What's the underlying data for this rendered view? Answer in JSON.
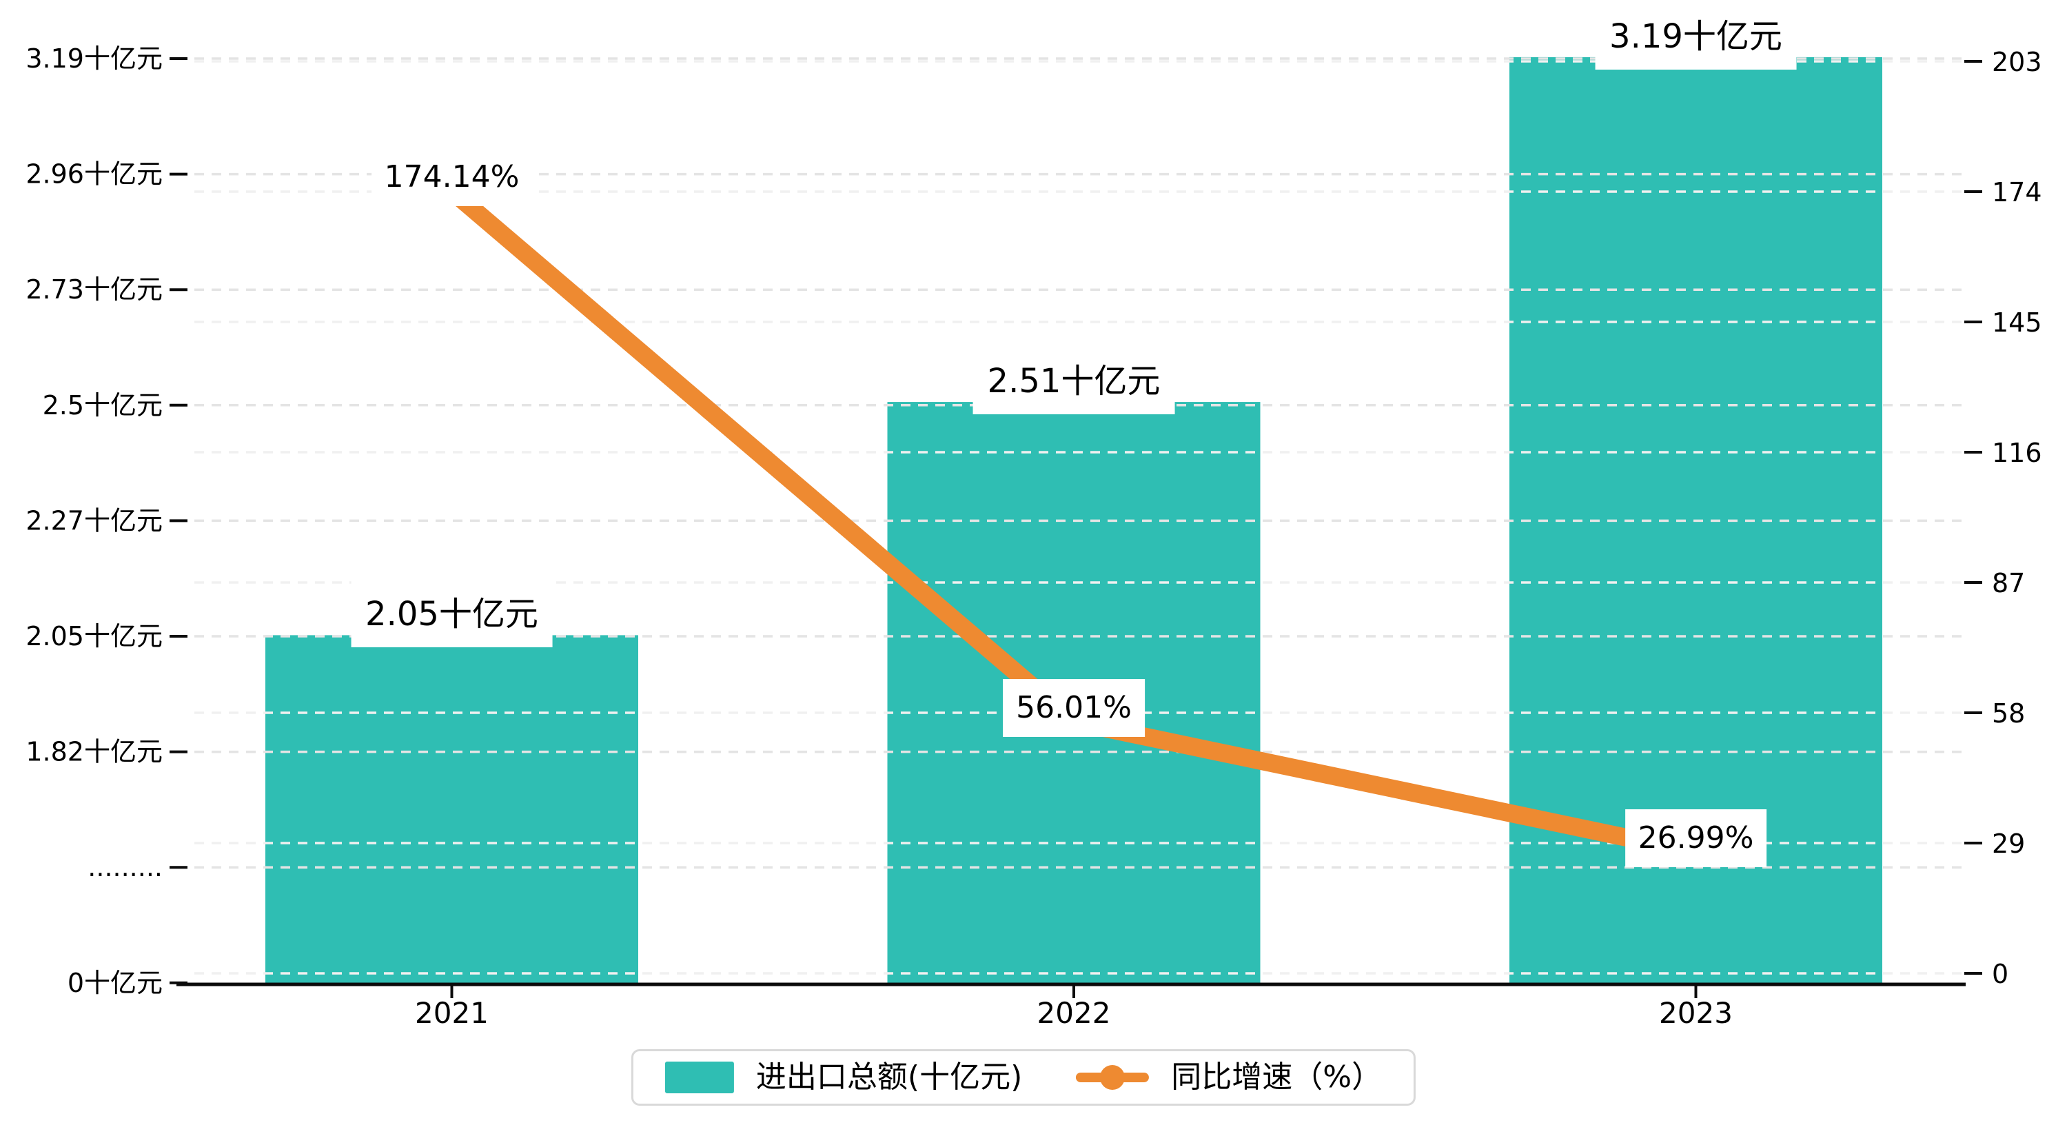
{
  "chart_data": {
    "type": "bar",
    "title": "",
    "categories": [
      "2021",
      "2022",
      "2023"
    ],
    "series": [
      {
        "name": "进出口总额(十亿元)",
        "type": "bar",
        "axis": "left",
        "values": [
          2.05,
          2.51,
          3.19
        ],
        "data_labels": [
          "2.05十亿元",
          "2.51十亿元",
          "3.19十亿元"
        ],
        "color": "#2FBEB3"
      },
      {
        "name": "同比增速（%）",
        "type": "line",
        "axis": "right",
        "values": [
          174.14,
          56.01,
          26.99
        ],
        "data_labels": [
          "174.14%",
          "56.01%",
          "26.99%"
        ],
        "color": "#EE8A31"
      }
    ],
    "left_axis": {
      "unit": "十亿元",
      "max": 3.19,
      "has_break": true,
      "tick_labels": [
        "3.19十亿元",
        "2.96十亿元",
        "2.73十亿元",
        "2.5十亿元",
        "2.27十亿元",
        "2.05十亿元",
        "1.82十亿元",
        ".........",
        "0十亿元"
      ]
    },
    "right_axis": {
      "min": 0,
      "max": 203,
      "tick_values": [
        203,
        174,
        145,
        116,
        87,
        58,
        29,
        0
      ],
      "tick_labels": [
        "203",
        "174",
        "145",
        "116",
        "87",
        "58",
        "29",
        "0"
      ]
    },
    "legend": {
      "position": "bottom",
      "items": [
        {
          "label": "进出口总额(十亿元)",
          "marker": "bar-swatch",
          "color": "#2FBEB3"
        },
        {
          "label": "同比增速（%）",
          "marker": "line-dot",
          "color": "#EE8A31"
        }
      ]
    },
    "grid": {
      "shown": true,
      "style": "dashed"
    }
  },
  "colors": {
    "bar": "#2FBEB3",
    "line": "#EE8A31",
    "axis": "#0B0B0B",
    "text": "#000000",
    "grid_left": "#E4E4E4",
    "grid_right": "#F0F0F0",
    "legend_border": "#D9D9D9",
    "background": "#FFFFFF"
  }
}
